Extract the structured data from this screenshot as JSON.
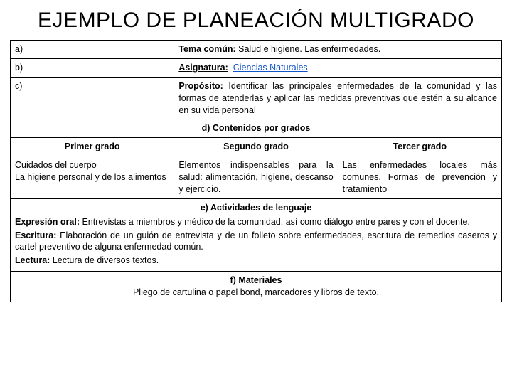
{
  "title": "EJEMPLO DE PLANEACIÓN MULTIGRADO",
  "rows": {
    "a": {
      "letter": "a)",
      "label": "Tema común:",
      "text": " Salud e higiene. Las enfermedades."
    },
    "b": {
      "letter": "b)",
      "label": "Asignatura:",
      "link": "Ciencias Naturales"
    },
    "c": {
      "letter": "c)",
      "label": "Propósito:",
      "text": " Identificar las principales enfermedades de la comunidad y las formas de atenderlas y aplicar las medidas preventivas que estén a su alcance en su vida personal"
    }
  },
  "section_d": "d) Contenidos por grados",
  "grades": {
    "col1": {
      "header": "Primer grado",
      "body": "Cuidados del cuerpo\nLa higiene personal y de los alimentos"
    },
    "col2": {
      "header": "Segundo grado",
      "body": "Elementos indispensables para la salud: alimentación, higiene, descanso y ejercicio."
    },
    "col3": {
      "header": "Tercer grado",
      "body": "Las enfermedades locales más comunes. Formas de prevención y tratamiento"
    }
  },
  "section_e": {
    "title": "e) Actividades de lenguaje",
    "oral_label": "Expresión oral:",
    "oral_text": " Entrevistas a miembros y médico de la comunidad, así como diálogo entre pares y con el docente.",
    "escritura_label": "Escritura:",
    "escritura_text": " Elaboración de un guión de entrevista y de un folleto sobre enfermedades, escritura de remedios caseros y cartel preventivo de alguna enfermedad común.",
    "lectura_label": "Lectura:",
    "lectura_text": " Lectura de diversos textos."
  },
  "section_f": {
    "title": "f) Materiales",
    "text": "Pliego de cartulina o papel bond, marcadores y libros de texto."
  },
  "style": {
    "border_color": "#000000",
    "background": "#ffffff",
    "link_color": "#1155cc",
    "title_fontsize": 30,
    "body_fontsize": 12.5,
    "letter_fontsize": 9
  }
}
